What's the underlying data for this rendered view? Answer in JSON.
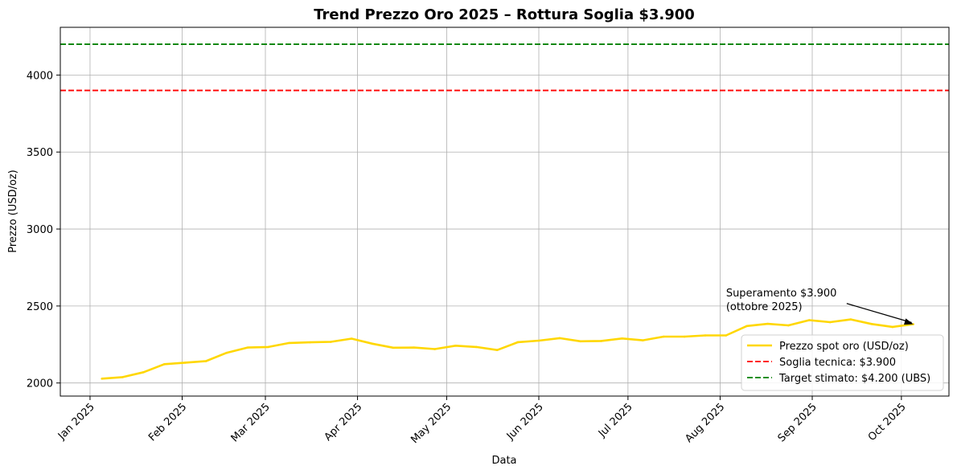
{
  "chart_data": {
    "type": "line",
    "title": "Trend Prezzo Oro 2025 – Rottura Soglia $3.900",
    "xlabel": "Data",
    "ylabel": "Prezzo (USD/oz)",
    "grid": true,
    "legend_position": "lower-right",
    "x_ticks": [
      "2025-01-01",
      "2025-02-01",
      "2025-03-01",
      "2025-04-01",
      "2025-05-01",
      "2025-06-01",
      "2025-07-01",
      "2025-08-01",
      "2025-09-01",
      "2025-10-01"
    ],
    "x_tick_labels": [
      "Jan 2025",
      "Feb 2025",
      "Mar 2025",
      "Apr 2025",
      "May 2025",
      "Jun 2025",
      "Jul 2025",
      "Aug 2025",
      "Sep 2025",
      "Oct 2025"
    ],
    "y_ticks": [
      2000,
      2500,
      3000,
      3500,
      4000
    ],
    "y_tick_labels": [
      "2000",
      "2500",
      "3000",
      "3500",
      "4000"
    ],
    "ylim": [
      1915,
      4310
    ],
    "xlim": [
      "2024-12-22",
      "2025-10-17"
    ],
    "series": [
      {
        "name": "Prezzo spot oro (USD/oz)",
        "color": "#FFD700",
        "style": "solid",
        "x": [
          "2025-01-05",
          "2025-01-12",
          "2025-01-19",
          "2025-01-26",
          "2025-02-02",
          "2025-02-09",
          "2025-02-16",
          "2025-02-23",
          "2025-03-02",
          "2025-03-09",
          "2025-03-16",
          "2025-03-23",
          "2025-03-30",
          "2025-04-06",
          "2025-04-13",
          "2025-04-20",
          "2025-04-27",
          "2025-05-04",
          "2025-05-11",
          "2025-05-18",
          "2025-05-25",
          "2025-06-01",
          "2025-06-08",
          "2025-06-15",
          "2025-06-22",
          "2025-06-29",
          "2025-07-06",
          "2025-07-13",
          "2025-07-20",
          "2025-07-27",
          "2025-08-03",
          "2025-08-10",
          "2025-08-17",
          "2025-08-24",
          "2025-08-31",
          "2025-09-07",
          "2025-09-14",
          "2025-09-21",
          "2025-09-28",
          "2025-10-05"
        ],
        "values": [
          2028,
          2038,
          2070,
          2122,
          2132,
          2142,
          2196,
          2230,
          2234,
          2260,
          2264,
          2267,
          2288,
          2255,
          2229,
          2230,
          2220,
          2242,
          2234,
          2214,
          2265,
          2275,
          2291,
          2271,
          2273,
          2289,
          2277,
          2301,
          2301,
          2309,
          2309,
          2370,
          2384,
          2374,
          2408,
          2395,
          2413,
          2383,
          2364,
          2382
        ]
      },
      {
        "name": "Soglia tecnica: $3.900",
        "color": "#FF0000",
        "style": "dashed",
        "hline": 3900
      },
      {
        "name": "Target stimato: $4.200 (UBS)",
        "color": "#008000",
        "style": "dashed",
        "hline": 4200
      }
    ],
    "annotation": {
      "text_lines": [
        "Superamento $3.900",
        "(ottobre 2025)"
      ],
      "point_x": "2025-10-05",
      "point_y": 2382,
      "text_x": "2025-08-03",
      "text_y": 2485
    }
  }
}
